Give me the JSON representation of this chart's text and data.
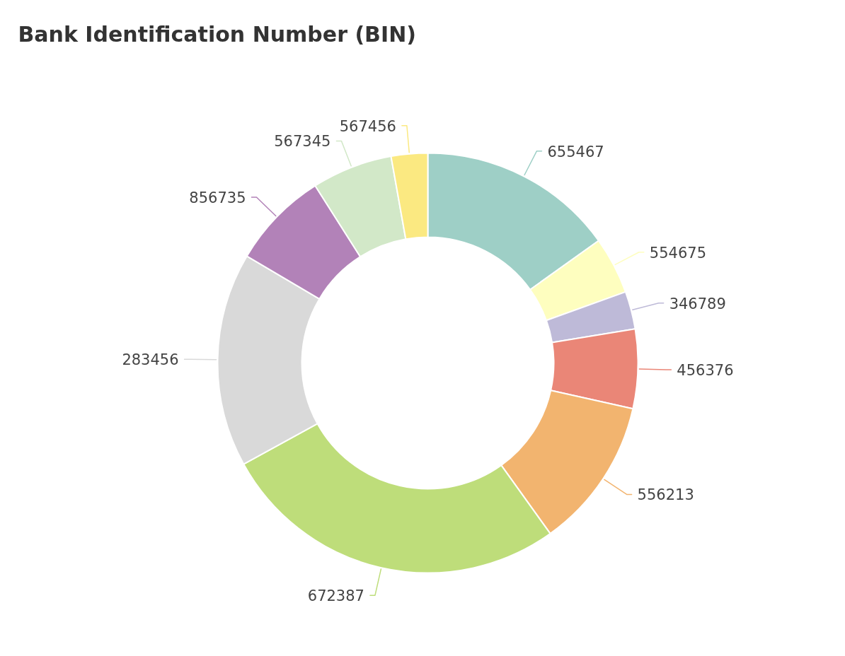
{
  "chart_data": {
    "type": "donut",
    "title": "Bank Identification Number (BIN)",
    "categories": [
      "655467",
      "554675",
      "346789",
      "456376",
      "556213",
      "672387",
      "283456",
      "856735",
      "567345",
      "567456"
    ],
    "values": [
      15.1,
      4.4,
      2.9,
      6.1,
      11.6,
      26.9,
      16.5,
      7.5,
      6.2,
      2.8
    ],
    "colors": [
      "#9ecfc6",
      "#fefebf",
      "#bebad8",
      "#ea8677",
      "#f2b46f",
      "#bedd7a",
      "#d9d9d9",
      "#b282b8",
      "#d2e8c8",
      "#fbe981"
    ]
  }
}
